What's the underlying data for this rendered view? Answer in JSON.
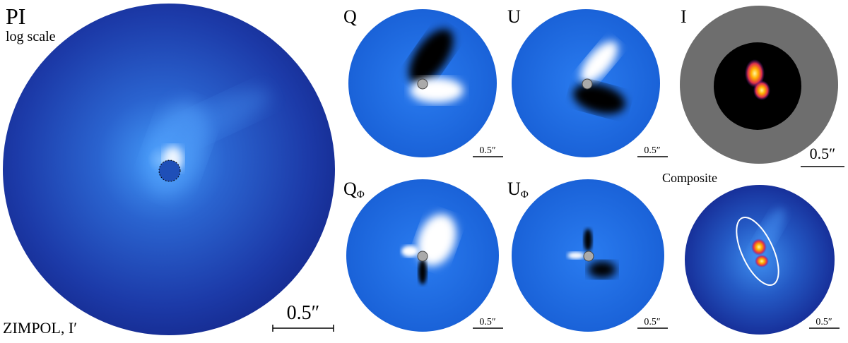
{
  "panels": [
    {
      "label": "PI",
      "sublabel": "log scale",
      "footer": "ZIMPOL, I′",
      "scale_bar": "0.5″"
    },
    {
      "label": "Q",
      "scale_bar": "0.5″"
    },
    {
      "label": "U",
      "scale_bar": "0.5″"
    },
    {
      "label": "I",
      "scale_bar": "0.5″"
    },
    {
      "label": "Q",
      "label_sub": "Φ",
      "scale_bar": "0.5″"
    },
    {
      "label": "U",
      "label_sub": "Φ",
      "scale_bar": "0.5″"
    },
    {
      "label": "Composite",
      "scale_bar": "0.5″"
    }
  ]
}
